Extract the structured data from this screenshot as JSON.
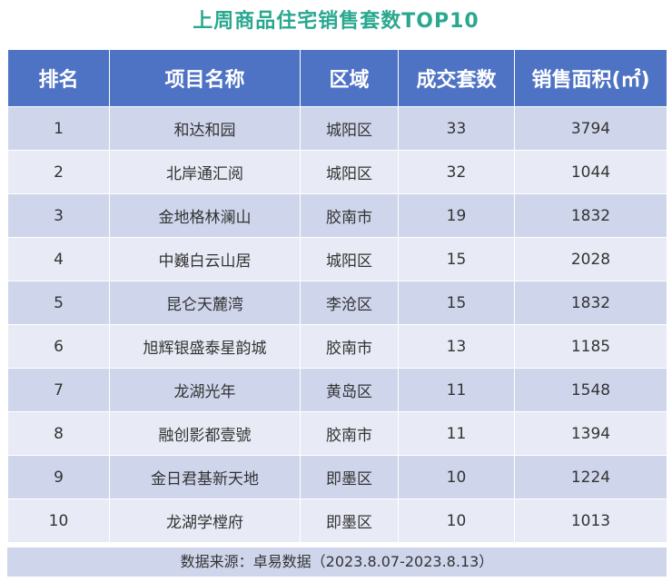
{
  "title": "上周商品住宅销售套数TOP10",
  "table": {
    "headers": [
      "排名",
      "项目名称",
      "区域",
      "成交套数",
      "销售面积(㎡)"
    ],
    "rows": [
      [
        "1",
        "和达和园",
        "城阳区",
        "33",
        "3794"
      ],
      [
        "2",
        "北岸通汇阅",
        "城阳区",
        "32",
        "1044"
      ],
      [
        "3",
        "金地格林澜山",
        "胶南市",
        "19",
        "1832"
      ],
      [
        "4",
        "中巍白云山居",
        "城阳区",
        "15",
        "2028"
      ],
      [
        "5",
        "昆仑天麓湾",
        "李沧区",
        "15",
        "1832"
      ],
      [
        "6",
        "旭辉银盛泰星韵城",
        "胶南市",
        "13",
        "1185"
      ],
      [
        "7",
        "龙湖光年",
        "黄岛区",
        "11",
        "1548"
      ],
      [
        "8",
        "融创影都壹號",
        "胶南市",
        "11",
        "1394"
      ],
      [
        "9",
        "金日君基新天地",
        "即墨区",
        "10",
        "1224"
      ],
      [
        "10",
        "龙湖学樘府",
        "即墨区",
        "10",
        "1013"
      ]
    ]
  },
  "footer": "数据来源：卓易数据（2023.8.07-2023.8.13）"
}
